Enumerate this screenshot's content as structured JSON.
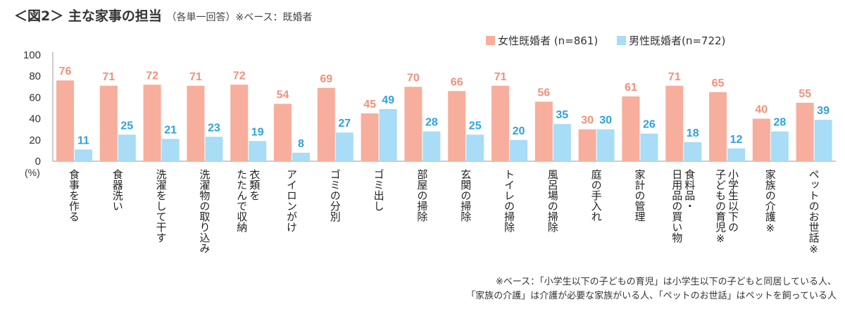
{
  "header": {
    "title": "＜図2＞ 主な家事の担当",
    "subtitle": "（各単一回答）※ベース：既婚者"
  },
  "colors": {
    "female": "#f7ae9c",
    "male": "#a8dcf7",
    "female_label": "#f3907a",
    "male_label": "#2ea2dc"
  },
  "chart_data": {
    "type": "bar",
    "ylabel": "(%)",
    "ylim": [
      0,
      100
    ],
    "yticks": [
      "0",
      "20",
      "40",
      "60",
      "80",
      "100"
    ],
    "categories": [
      "食事を作る",
      "食器洗い",
      "洗濯をして干す",
      "洗濯物の取り込み",
      "衣類を\nたたんで収納",
      "アイロンがけ",
      "ゴミの分別",
      "ゴミ出し",
      "部屋の掃除",
      "玄関の掃除",
      "トイレの掃除",
      "風呂場の掃除",
      "庭の手入れ",
      "家計の管理",
      "食料品・\n日用品の買い物",
      "小学生以下の\n子どもの育児※",
      "家族の介護※",
      "ペットのお世話※"
    ],
    "series": [
      {
        "name": "女性既婚者 (n=861)",
        "values": [
          76,
          71,
          72,
          71,
          72,
          54,
          69,
          45,
          70,
          66,
          71,
          56,
          30,
          61,
          71,
          65,
          40,
          55
        ]
      },
      {
        "name": "男性既婚者(n=722)",
        "values": [
          11,
          25,
          21,
          23,
          19,
          8,
          27,
          49,
          28,
          25,
          20,
          35,
          30,
          26,
          18,
          12,
          28,
          39
        ]
      }
    ],
    "legend": "top-right"
  },
  "footnote": {
    "line1": "※ベース：「小学生以下の子どもの育児」は小学生以下の子どもと同居している人、",
    "line2": "「家族の介護」は介護が必要な家族がいる人、「ペットのお世話」はペットを飼っている人"
  }
}
